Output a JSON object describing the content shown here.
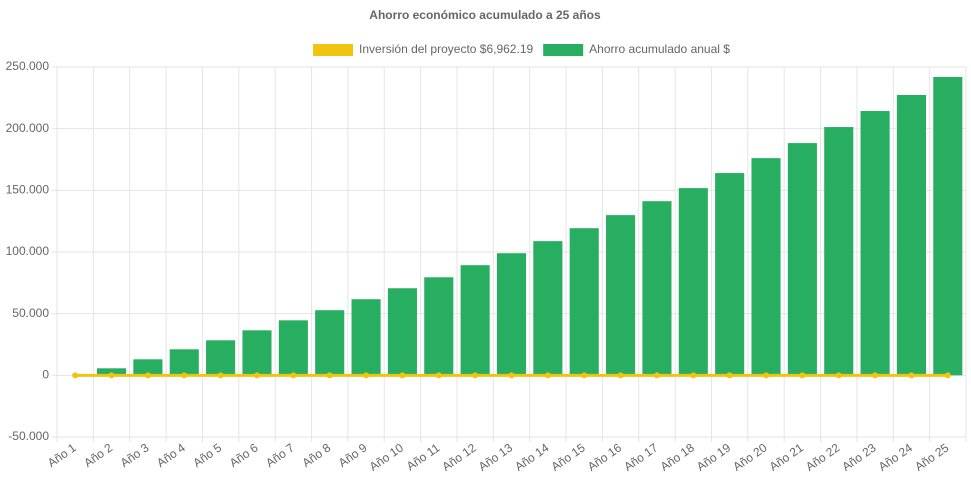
{
  "chart_data": {
    "type": "bar",
    "title": "Ahorro económico acumulado a 25 años",
    "categories": [
      "Año 1",
      "Año 2",
      "Año 3",
      "Año 4",
      "Año 5",
      "Año 6",
      "Año 7",
      "Año 8",
      "Año 9",
      "Año 10",
      "Año 11",
      "Año 12",
      "Año 13",
      "Año 14",
      "Año 15",
      "Año 16",
      "Año 17",
      "Año 18",
      "Año 19",
      "Año 20",
      "Año 21",
      "Año 22",
      "Año 23",
      "Año 24",
      "Año 25"
    ],
    "series": [
      {
        "name": "Inversión del proyecto $6,962.19",
        "type": "line",
        "color": "#f1c40f",
        "values": [
          0,
          0,
          0,
          0,
          0,
          0,
          0,
          0,
          0,
          0,
          0,
          0,
          0,
          0,
          0,
          0,
          0,
          0,
          0,
          0,
          0,
          0,
          0,
          0,
          0
        ]
      },
      {
        "name": "Ahorro acumulado anual $",
        "type": "bar",
        "color": "#27ae60",
        "values": [
          0,
          5700,
          13000,
          21100,
          28400,
          36500,
          44600,
          52800,
          61700,
          70600,
          79500,
          89300,
          99000,
          108800,
          119300,
          129900,
          141200,
          151800,
          164000,
          176100,
          188300,
          201300,
          214300,
          227300,
          241900
        ]
      }
    ],
    "ylim": [
      -50000,
      250000
    ],
    "yticks": [
      {
        "value": -50000,
        "label": "-50.000"
      },
      0,
      {
        "value": 50000,
        "label": "50.000"
      },
      {
        "value": 100000,
        "label": "100.000"
      },
      {
        "value": 150000,
        "label": "150.000"
      },
      {
        "value": 200000,
        "label": "200.000"
      },
      {
        "value": 250000,
        "label": "250.000"
      }
    ],
    "grid": true
  }
}
